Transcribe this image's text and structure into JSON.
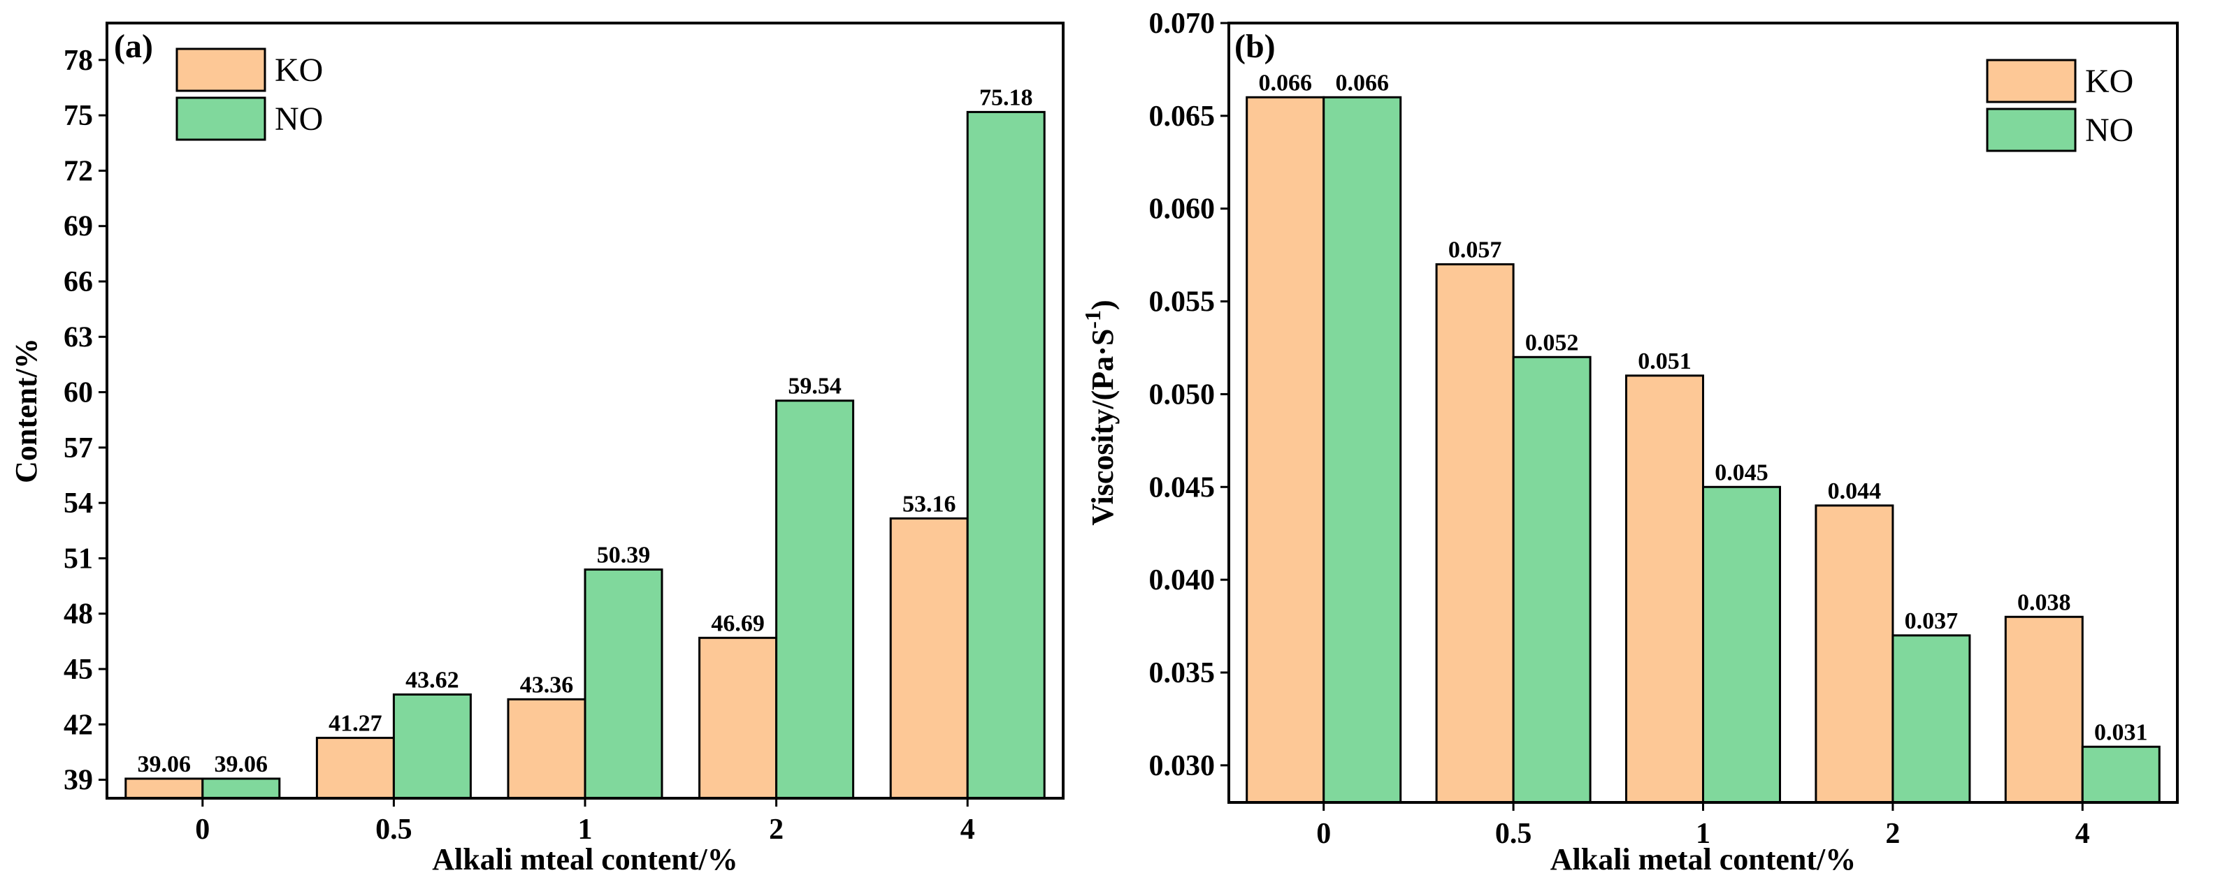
{
  "colors": {
    "KO": "#fdc896",
    "NO": "#80d89c",
    "axis": "#000000"
  },
  "chart_data": [
    {
      "type": "bar",
      "panel_label": "(a)",
      "categories": [
        "0",
        "0.5",
        "1",
        "2",
        "4"
      ],
      "series": [
        {
          "name": "KO",
          "values": [
            39.06,
            41.27,
            43.36,
            46.69,
            53.16
          ],
          "labels": [
            "39.06",
            "41.27",
            "43.36",
            "46.69",
            "53.16"
          ]
        },
        {
          "name": "NO",
          "values": [
            39.06,
            43.62,
            50.39,
            59.54,
            75.18
          ],
          "labels": [
            "39.06",
            "43.62",
            "50.39",
            "59.54",
            "75.18"
          ]
        }
      ],
      "xlabel": "Alkali mteal content/%",
      "ylabel": "Content/%",
      "ylim": [
        38,
        80
      ],
      "yticks": [
        "39",
        "42",
        "45",
        "48",
        "51",
        "54",
        "57",
        "60",
        "63",
        "66",
        "69",
        "72",
        "75",
        "78"
      ],
      "legend": "top-left"
    },
    {
      "type": "bar",
      "panel_label": "(b)",
      "categories": [
        "0",
        "0.5",
        "1",
        "2",
        "4"
      ],
      "series": [
        {
          "name": "KO",
          "values": [
            0.066,
            0.057,
            0.051,
            0.044,
            0.038
          ],
          "labels": [
            "0.066",
            "0.057",
            "0.051",
            "0.044",
            "0.038"
          ]
        },
        {
          "name": "NO",
          "values": [
            0.066,
            0.052,
            0.045,
            0.037,
            0.031
          ],
          "labels": [
            "0.066",
            "0.052",
            "0.045",
            "0.037",
            "0.031"
          ]
        }
      ],
      "xlabel": "Alkali metal content/%",
      "ylabel": "Viscosity/(Pa·S",
      "ylabel_sup": "-1",
      "ylabel_end": ")",
      "ylim": [
        0.028,
        0.07
      ],
      "yticks": [
        "0.030",
        "0.035",
        "0.040",
        "0.045",
        "0.050",
        "0.055",
        "0.060",
        "0.065",
        "0.070"
      ],
      "legend": "top-right"
    }
  ]
}
